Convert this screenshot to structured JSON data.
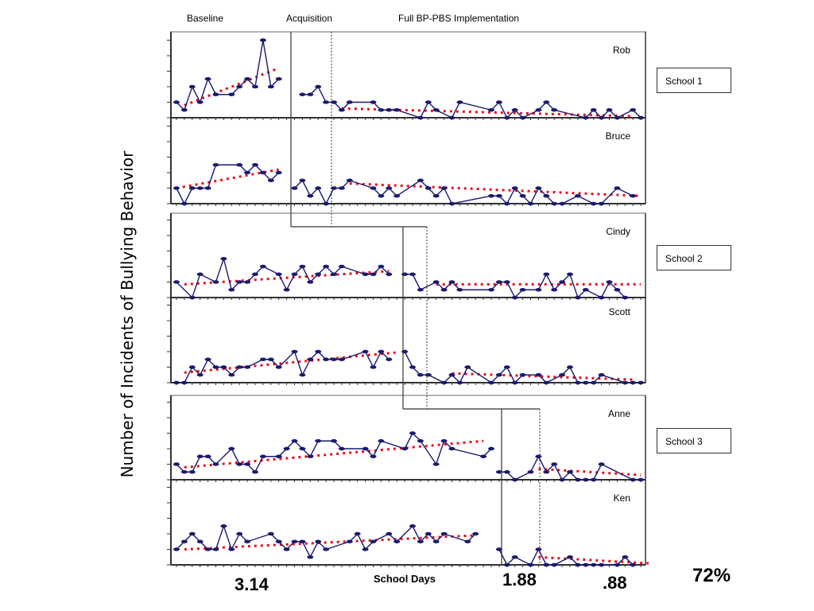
{
  "colors": {
    "series": "#1a1a6e",
    "trend": "#e8101c",
    "axis": "#000000",
    "frame": "#999999"
  },
  "phase_labels": {
    "baseline": "Baseline",
    "acquisition": "Acquisition",
    "full": "Full BP-PBS Implementation"
  },
  "schools": [
    "School 1",
    "School 2",
    "School 3"
  ],
  "ylabel": "Number of Incidents of Bullying Behavior",
  "xlabel": "School Days",
  "summary": {
    "baseline_mean": "3.14",
    "acquisition_mean": "1.88",
    "full_mean": ".88",
    "reduction": "72%"
  },
  "chart_data": {
    "type": "line",
    "title": "",
    "xlabel": "School Days",
    "ylabel": "Number of Incidents of Bullying Behavior",
    "xlim": [
      0,
      60
    ],
    "ylim": [
      0,
      5
    ],
    "grid": false,
    "panels": [
      {
        "name": "Rob",
        "school": "School 1",
        "baseline": [
          [
            1,
            1
          ],
          [
            2,
            0.5
          ],
          [
            3,
            2
          ],
          [
            4,
            1
          ],
          [
            5,
            2.5
          ],
          [
            6,
            1.5
          ],
          [
            8,
            1.5
          ],
          [
            9,
            2
          ],
          [
            10,
            2.5
          ],
          [
            11,
            2
          ],
          [
            12,
            5
          ],
          [
            13,
            2
          ],
          [
            14,
            2.5
          ]
        ],
        "treatment": [
          [
            17,
            1.5
          ],
          [
            18,
            1.5
          ],
          [
            19,
            2
          ],
          [
            20,
            1
          ],
          [
            21,
            1
          ],
          [
            22,
            0.5
          ],
          [
            23,
            1
          ],
          [
            26,
            1
          ],
          [
            27,
            0.5
          ],
          [
            28,
            0.5
          ],
          [
            29,
            0.5
          ],
          [
            32,
            0
          ],
          [
            33,
            1
          ],
          [
            34,
            0.5
          ],
          [
            36,
            0
          ],
          [
            37,
            1
          ],
          [
            41,
            0.5
          ],
          [
            42,
            1
          ],
          [
            43,
            0
          ],
          [
            44,
            0.5
          ],
          [
            45,
            0
          ],
          [
            47,
            0.5
          ],
          [
            48,
            1
          ],
          [
            49,
            0.5
          ],
          [
            53,
            0
          ],
          [
            54,
            0.5
          ],
          [
            55,
            0
          ],
          [
            56,
            0.5
          ],
          [
            57,
            0
          ],
          [
            59,
            0.5
          ],
          [
            60,
            0
          ]
        ],
        "trend_baseline": [
          [
            2,
            0.8
          ],
          [
            14,
            3.2
          ]
        ],
        "trend_treatment": [
          [
            22,
            0.6
          ],
          [
            59,
            0.1
          ]
        ]
      },
      {
        "name": "Bruce",
        "school": "School 1",
        "baseline": [
          [
            1,
            1
          ],
          [
            2,
            0
          ],
          [
            3,
            1
          ],
          [
            4,
            1
          ],
          [
            5,
            1
          ],
          [
            6,
            2.5
          ],
          [
            9,
            2.5
          ],
          [
            10,
            2
          ],
          [
            11,
            2.5
          ],
          [
            12,
            2
          ],
          [
            13,
            1.5
          ],
          [
            14,
            2
          ]
        ],
        "treatment": [
          [
            16,
            1
          ],
          [
            17,
            1.5
          ],
          [
            18,
            0.5
          ],
          [
            19,
            1
          ],
          [
            20,
            0
          ],
          [
            21,
            1
          ],
          [
            22,
            1
          ],
          [
            23,
            1.5
          ],
          [
            26,
            1
          ],
          [
            27,
            0.5
          ],
          [
            28,
            1
          ],
          [
            29,
            0.5
          ],
          [
            32,
            1.5
          ],
          [
            33,
            1
          ],
          [
            34,
            0.5
          ],
          [
            35,
            1
          ],
          [
            36,
            0
          ],
          [
            41,
            0.5
          ],
          [
            42,
            0.5
          ],
          [
            43,
            0
          ],
          [
            44,
            1
          ],
          [
            45,
            0.5
          ],
          [
            46,
            0
          ],
          [
            47,
            1
          ],
          [
            48,
            0.5
          ],
          [
            49,
            0
          ],
          [
            50,
            0
          ],
          [
            52,
            0.5
          ],
          [
            54,
            0
          ],
          [
            55,
            0
          ],
          [
            57,
            1
          ],
          [
            59,
            0.5
          ]
        ],
        "trend_baseline": [
          [
            1,
            1
          ],
          [
            14,
            2.2
          ]
        ],
        "trend_treatment": [
          [
            23,
            1.3
          ],
          [
            60,
            0.5
          ]
        ]
      },
      {
        "name": "Cindy",
        "school": "School 2",
        "baseline": [
          [
            1,
            1
          ],
          [
            3,
            0
          ],
          [
            4,
            1.5
          ],
          [
            6,
            1
          ],
          [
            7,
            2.5
          ],
          [
            8,
            0.5
          ],
          [
            9,
            1
          ],
          [
            10,
            1
          ],
          [
            11,
            1.5
          ],
          [
            12,
            2
          ],
          [
            14,
            1.5
          ],
          [
            15,
            0.5
          ],
          [
            16,
            1.5
          ],
          [
            17,
            2
          ],
          [
            18,
            1
          ],
          [
            19,
            1.5
          ],
          [
            20,
            2
          ],
          [
            21,
            1.5
          ],
          [
            22,
            2
          ],
          [
            25,
            1.5
          ],
          [
            26,
            1.5
          ],
          [
            27,
            2
          ],
          [
            28,
            1.5
          ]
        ],
        "treatment": [
          [
            30,
            1.5
          ],
          [
            31,
            1.5
          ],
          [
            32,
            0.5
          ],
          [
            34,
            1
          ],
          [
            35,
            0.5
          ],
          [
            36,
            1
          ],
          [
            37,
            0.5
          ],
          [
            41,
            0.5
          ],
          [
            42,
            1
          ],
          [
            43,
            1
          ],
          [
            44,
            0
          ],
          [
            45,
            0.5
          ],
          [
            47,
            0.5
          ],
          [
            48,
            1.5
          ],
          [
            49,
            0.5
          ],
          [
            50,
            1
          ],
          [
            51,
            1.5
          ],
          [
            52,
            0
          ],
          [
            53,
            0.5
          ],
          [
            55,
            0
          ],
          [
            56,
            1
          ],
          [
            57,
            0.5
          ],
          [
            58,
            0
          ]
        ],
        "trend_baseline": [
          [
            2,
            0.85
          ],
          [
            28,
            1.7
          ]
        ],
        "trend_treatment": [
          [
            34,
            0.85
          ],
          [
            60,
            0.85
          ]
        ]
      },
      {
        "name": "Scott",
        "school": "School 2",
        "baseline": [
          [
            1,
            0
          ],
          [
            2,
            0
          ],
          [
            3,
            1
          ],
          [
            4,
            0.5
          ],
          [
            5,
            1.5
          ],
          [
            6,
            1
          ],
          [
            7,
            1
          ],
          [
            8,
            0.5
          ],
          [
            9,
            1
          ],
          [
            10,
            1
          ],
          [
            12,
            1.5
          ],
          [
            13,
            1.5
          ],
          [
            14,
            1
          ],
          [
            16,
            2
          ],
          [
            17,
            0.5
          ],
          [
            18,
            1.5
          ],
          [
            19,
            2
          ],
          [
            20,
            1.5
          ],
          [
            21,
            1.5
          ],
          [
            22,
            1.5
          ],
          [
            25,
            2
          ],
          [
            26,
            1
          ],
          [
            27,
            2
          ],
          [
            28,
            1.5
          ]
        ],
        "treatment": [
          [
            30,
            2
          ],
          [
            31,
            1
          ],
          [
            32,
            0.5
          ],
          [
            33,
            0.5
          ],
          [
            35,
            0
          ],
          [
            36,
            0.5
          ],
          [
            37,
            0
          ],
          [
            38,
            1
          ],
          [
            41,
            0
          ],
          [
            42,
            0.5
          ],
          [
            43,
            1
          ],
          [
            44,
            0
          ],
          [
            45,
            0.5
          ],
          [
            47,
            0.5
          ],
          [
            48,
            0
          ],
          [
            50,
            0.5
          ],
          [
            51,
            1
          ],
          [
            52,
            0
          ],
          [
            53,
            0
          ],
          [
            54,
            0
          ],
          [
            55,
            0.5
          ],
          [
            58,
            0
          ],
          [
            59,
            0
          ],
          [
            60,
            0
          ]
        ],
        "trend_baseline": [
          [
            2,
            0.65
          ],
          [
            29,
            1.95
          ]
        ],
        "trend_treatment": [
          [
            36,
            0.6
          ],
          [
            59,
            0.2
          ]
        ]
      },
      {
        "name": "Anne",
        "school": "School 3",
        "baseline": [
          [
            1,
            1
          ],
          [
            2,
            0.5
          ],
          [
            3,
            0.5
          ],
          [
            4,
            1.5
          ],
          [
            5,
            1.5
          ],
          [
            6,
            1
          ],
          [
            8,
            2
          ],
          [
            9,
            1
          ],
          [
            10,
            1
          ],
          [
            11,
            0.5
          ],
          [
            12,
            1.5
          ],
          [
            14,
            1.5
          ],
          [
            15,
            2
          ],
          [
            16,
            2.5
          ],
          [
            17,
            2
          ],
          [
            18,
            1.5
          ],
          [
            19,
            2.5
          ],
          [
            21,
            2.5
          ],
          [
            22,
            2
          ],
          [
            25,
            2
          ],
          [
            26,
            1.5
          ],
          [
            27,
            2.5
          ],
          [
            30,
            2
          ],
          [
            31,
            3
          ],
          [
            32,
            2.5
          ],
          [
            34,
            1
          ],
          [
            35,
            2.5
          ],
          [
            36,
            2
          ],
          [
            40,
            1.5
          ],
          [
            41,
            2
          ]
        ],
        "treatment": [
          [
            42,
            0.5
          ],
          [
            43,
            0.5
          ],
          [
            44,
            0
          ],
          [
            46,
            0.5
          ],
          [
            47,
            1.5
          ],
          [
            48,
            0.5
          ],
          [
            49,
            1
          ],
          [
            50,
            0
          ],
          [
            51,
            0.5
          ],
          [
            52,
            0
          ],
          [
            53,
            0
          ],
          [
            54,
            0
          ],
          [
            55,
            1
          ],
          [
            59,
            0
          ],
          [
            60,
            0
          ]
        ],
        "trend_baseline": [
          [
            2,
            0.8
          ],
          [
            40,
            2.5
          ]
        ],
        "trend_treatment": [
          [
            47,
            0.7
          ],
          [
            60,
            0.3
          ]
        ]
      },
      {
        "name": "Ken",
        "school": "School 3",
        "baseline": [
          [
            1,
            1
          ],
          [
            2,
            1.5
          ],
          [
            3,
            2
          ],
          [
            4,
            1.5
          ],
          [
            5,
            1
          ],
          [
            6,
            1
          ],
          [
            7,
            2.5
          ],
          [
            8,
            1
          ],
          [
            9,
            2
          ],
          [
            10,
            1.5
          ],
          [
            13,
            2
          ],
          [
            14,
            1.5
          ],
          [
            15,
            1
          ],
          [
            16,
            1.5
          ],
          [
            17,
            1.5
          ],
          [
            18,
            0.5
          ],
          [
            19,
            1.5
          ],
          [
            20,
            1
          ],
          [
            23,
            1.5
          ],
          [
            24,
            2
          ],
          [
            25,
            1
          ],
          [
            26,
            1.5
          ],
          [
            28,
            2
          ],
          [
            29,
            1.5
          ],
          [
            31,
            2.5
          ],
          [
            32,
            1.5
          ],
          [
            33,
            2
          ],
          [
            34,
            1.5
          ],
          [
            35,
            2
          ],
          [
            38,
            1.5
          ],
          [
            39,
            2
          ]
        ],
        "treatment": [
          [
            42,
            1
          ],
          [
            43,
            0
          ],
          [
            44,
            0.5
          ],
          [
            46,
            0
          ],
          [
            47,
            1
          ],
          [
            48,
            0
          ],
          [
            49,
            0
          ],
          [
            51,
            0.5
          ],
          [
            52,
            0
          ],
          [
            53,
            0
          ],
          [
            54,
            0
          ],
          [
            55,
            0
          ],
          [
            57,
            0
          ],
          [
            58,
            0.5
          ],
          [
            59,
            0
          ]
        ],
        "trend_baseline": [
          [
            2,
            1
          ],
          [
            39,
            1.9
          ]
        ],
        "trend_treatment": [
          [
            47,
            0.5
          ],
          [
            61,
            0.1
          ]
        ]
      }
    ]
  }
}
